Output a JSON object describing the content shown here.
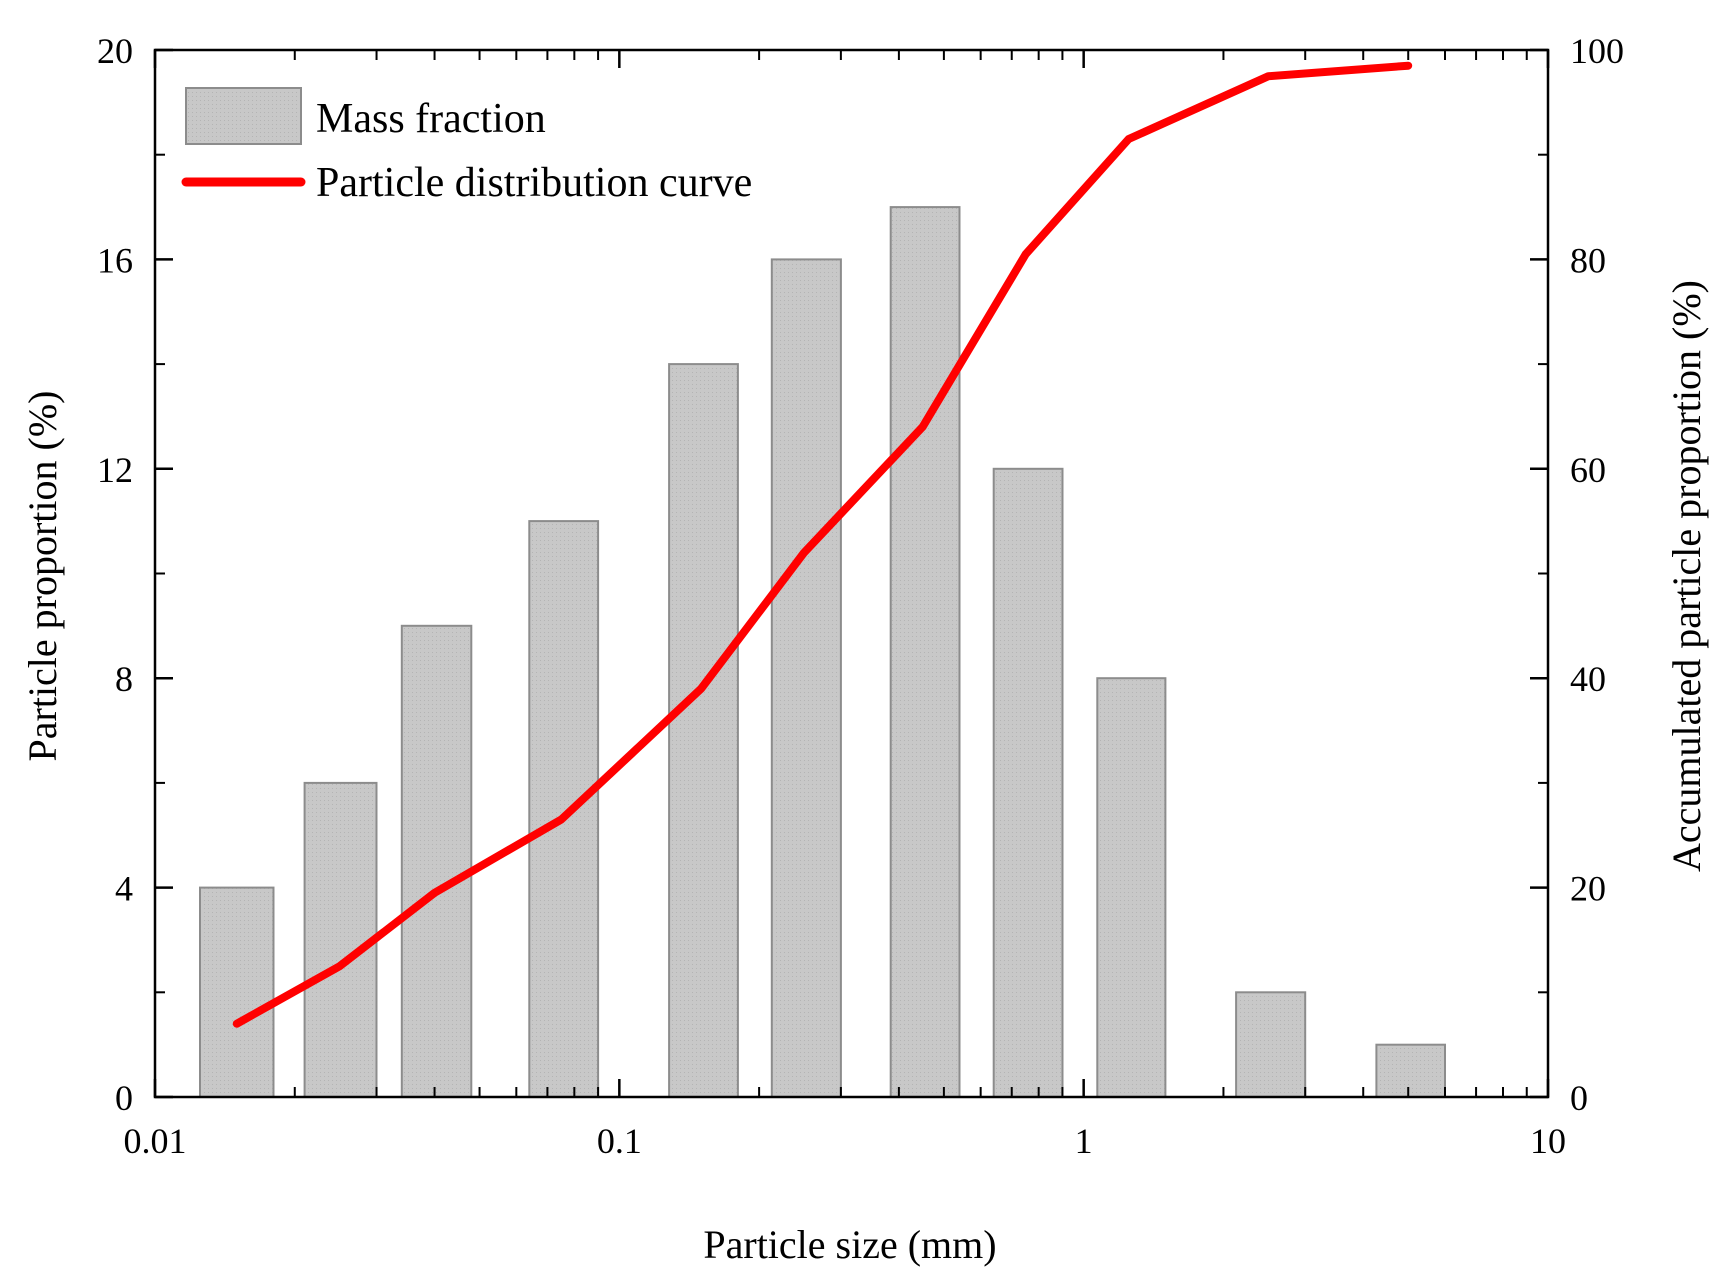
{
  "chart_data": {
    "type": "bar",
    "x_scale": "log",
    "xlim": [
      0.01,
      10
    ],
    "x_ticks": [
      {
        "value": 0.01,
        "label": "0.01"
      },
      {
        "value": 0.1,
        "label": "0.1"
      },
      {
        "value": 1,
        "label": "1"
      },
      {
        "value": 10,
        "label": "10"
      }
    ],
    "xlabel": "Particle size (mm)",
    "ylabel_left": "Particle proportion (%)",
    "ylabel_right": "Accumulated particle proportion (%)",
    "ylim_left": [
      0,
      20
    ],
    "ylim_right": [
      0,
      100
    ],
    "y_ticks_left": [
      {
        "value": 0,
        "label": "0"
      },
      {
        "value": 4,
        "label": "4"
      },
      {
        "value": 8,
        "label": "8"
      },
      {
        "value": 12,
        "label": "12"
      },
      {
        "value": 16,
        "label": "16"
      },
      {
        "value": 20,
        "label": "20"
      }
    ],
    "y_ticks_right": [
      {
        "value": 0,
        "label": "0"
      },
      {
        "value": 20,
        "label": "20"
      },
      {
        "value": 40,
        "label": "40"
      },
      {
        "value": 60,
        "label": "60"
      },
      {
        "value": 80,
        "label": "80"
      },
      {
        "value": 100,
        "label": "100"
      }
    ],
    "legend_position": "top-left",
    "series": [
      {
        "name": "Mass fraction",
        "type": "bar",
        "axis": "left",
        "color": "#c8c8c8",
        "edge_color": "#8c8c8c",
        "bins": [
          {
            "x_min": 0.0125,
            "x_max": 0.018,
            "value": 4
          },
          {
            "x_min": 0.021,
            "x_max": 0.03,
            "value": 6
          },
          {
            "x_min": 0.034,
            "x_max": 0.048,
            "value": 9
          },
          {
            "x_min": 0.064,
            "x_max": 0.09,
            "value": 11
          },
          {
            "x_min": 0.128,
            "x_max": 0.18,
            "value": 14
          },
          {
            "x_min": 0.213,
            "x_max": 0.3,
            "value": 16
          },
          {
            "x_min": 0.384,
            "x_max": 0.54,
            "value": 17
          },
          {
            "x_min": 0.64,
            "x_max": 0.9,
            "value": 12
          },
          {
            "x_min": 1.07,
            "x_max": 1.5,
            "value": 8
          },
          {
            "x_min": 2.13,
            "x_max": 3.0,
            "value": 2
          },
          {
            "x_min": 4.27,
            "x_max": 6.0,
            "value": 1
          }
        ]
      },
      {
        "name": "Particle distribution curve",
        "type": "line",
        "axis": "right",
        "color": "#ff0000",
        "x": [
          0.015,
          0.025,
          0.04,
          0.075,
          0.15,
          0.25,
          0.45,
          0.75,
          1.25,
          2.5,
          5.0
        ],
        "values": [
          7,
          12.5,
          19.5,
          26.5,
          39,
          52,
          64,
          80.5,
          91.5,
          97.5,
          98.5
        ]
      }
    ]
  }
}
